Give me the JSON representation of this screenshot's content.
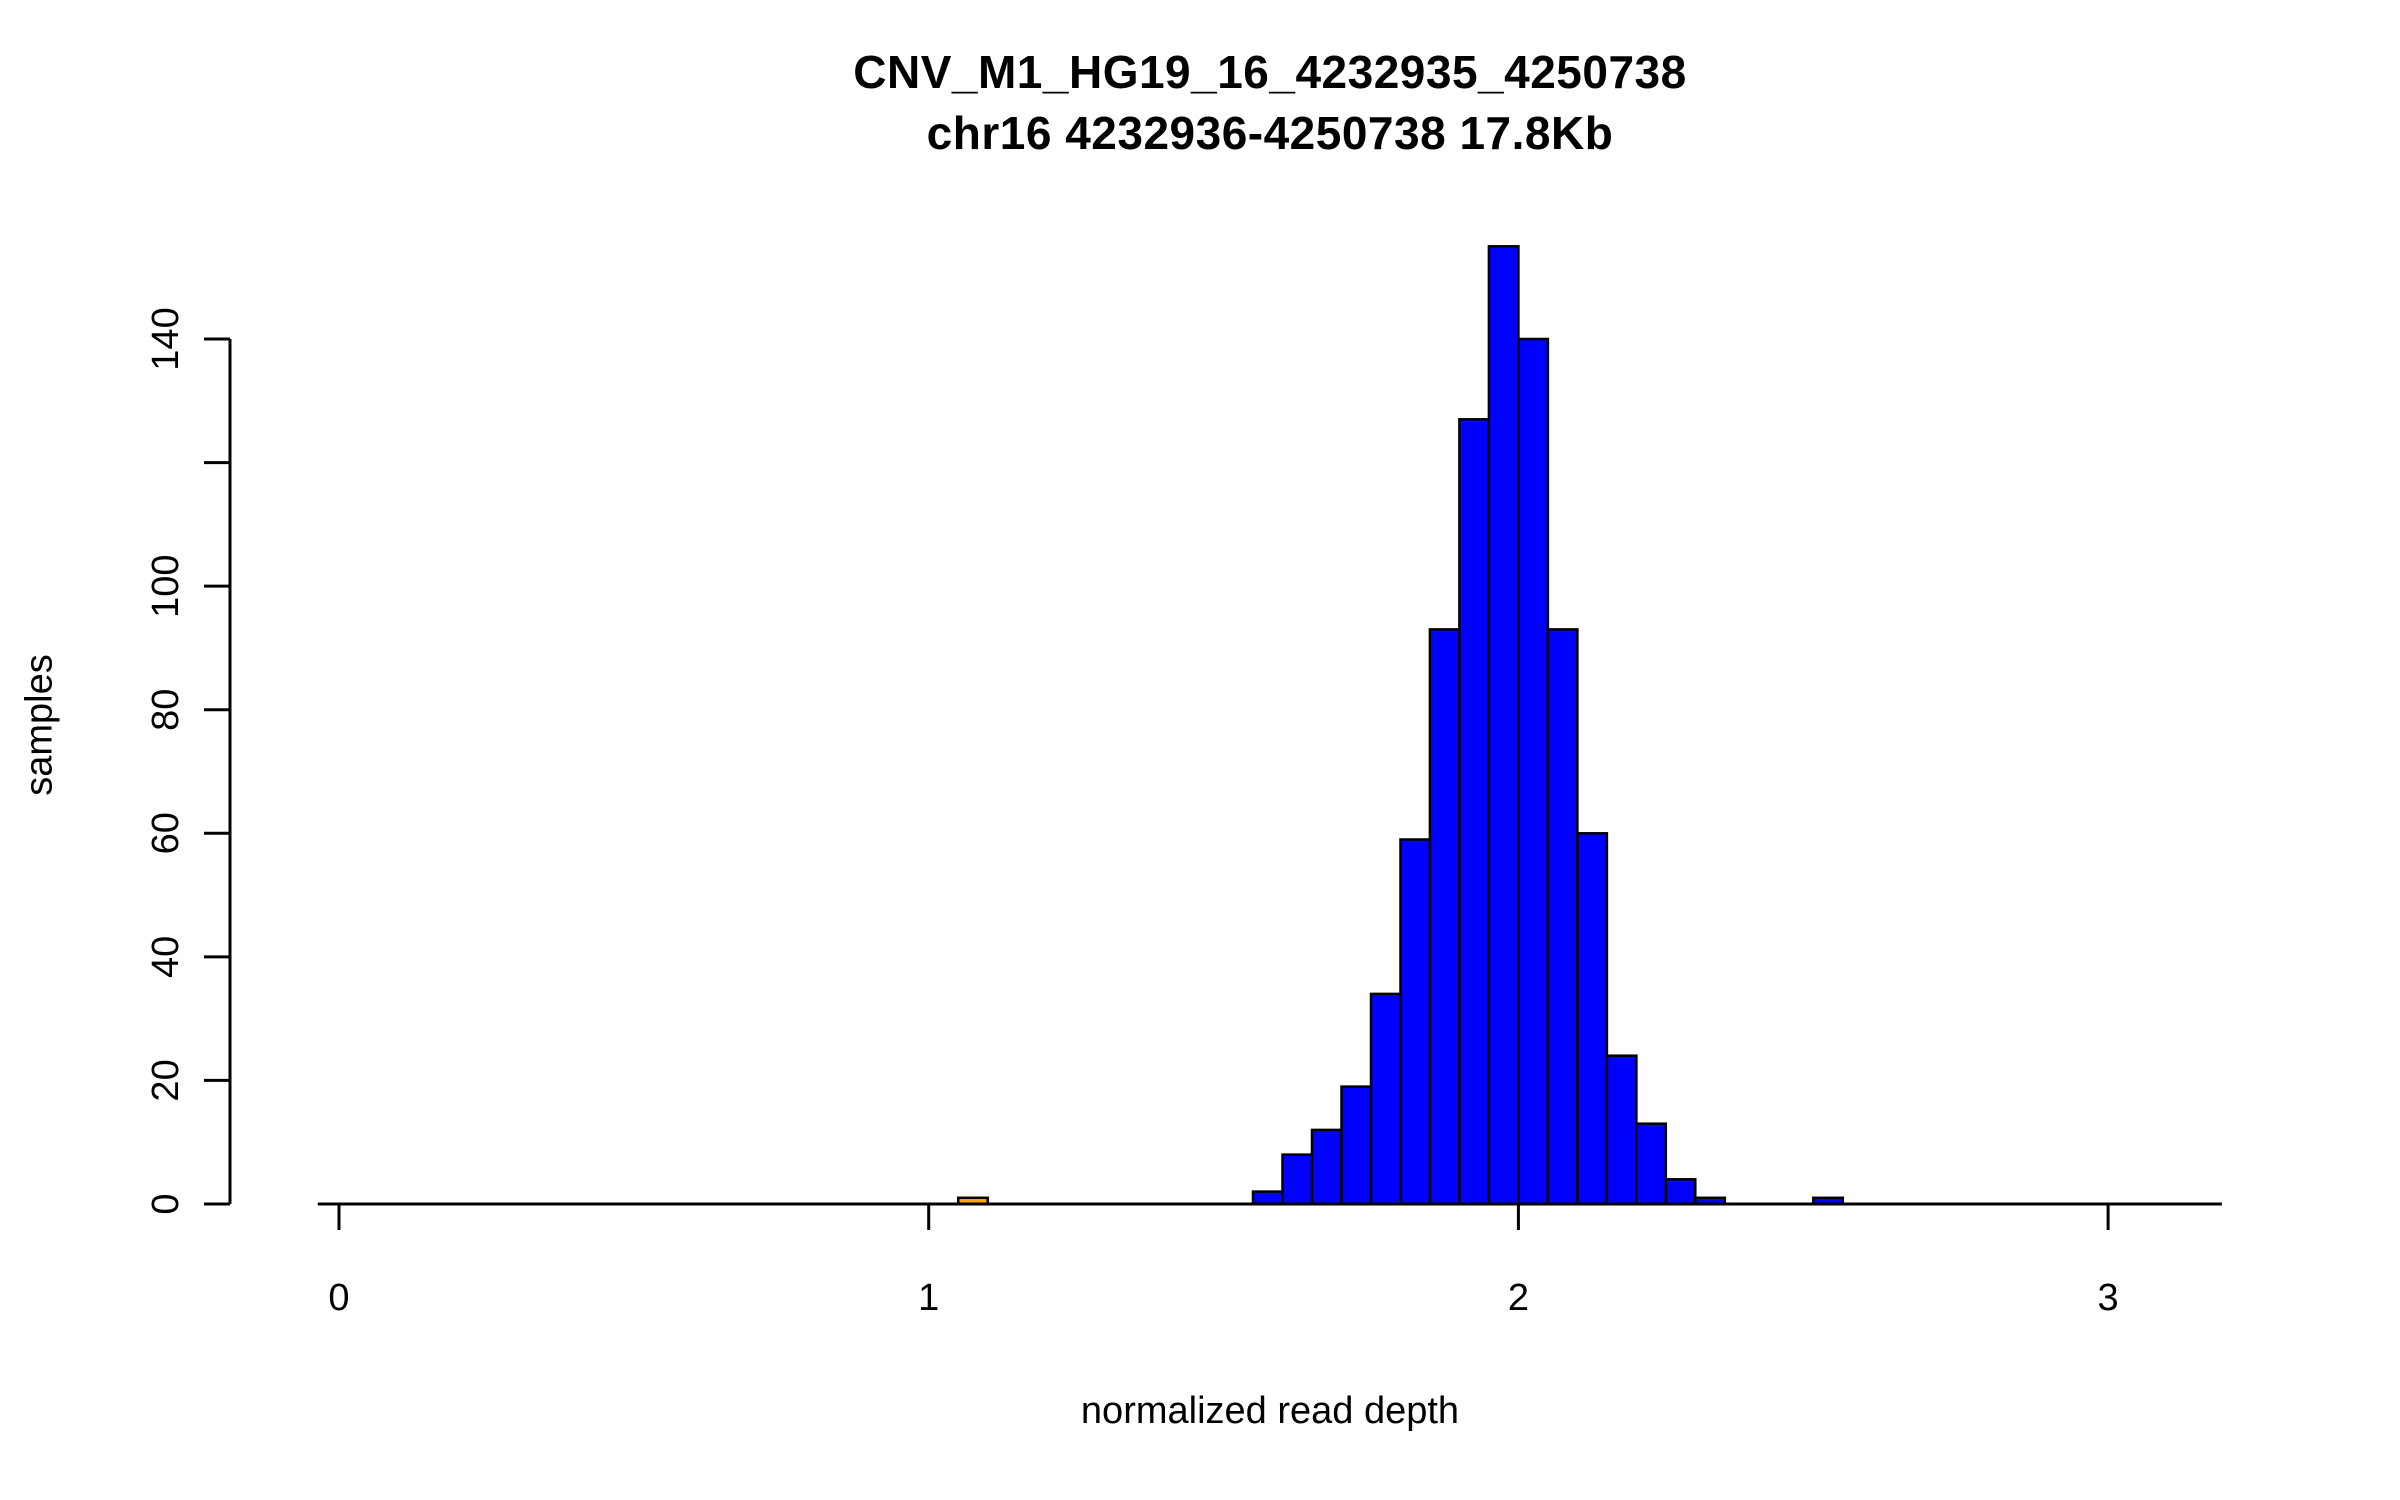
{
  "page": {
    "background": "#ffffff"
  },
  "chart_data": {
    "type": "bar",
    "subtype": "histogram",
    "title": "CNV_M1_HG19_16_4232935_4250738",
    "subtitle": "chr16 4232936-4250738 17.8Kb",
    "xlabel": "normalized read depth",
    "ylabel": "samples",
    "grid": false,
    "legend": false,
    "xlim": [
      -0.04,
      3.2
    ],
    "ylim": [
      0,
      155
    ],
    "x_axis_line_extent": [
      -0.036,
      3.193
    ],
    "y_axis_line_extent": [
      0,
      140
    ],
    "x_ticks": [
      {
        "v": 0,
        "label": "0"
      },
      {
        "v": 1,
        "label": "1"
      },
      {
        "v": 2,
        "label": "2"
      },
      {
        "v": 3,
        "label": "3"
      }
    ],
    "y_ticks": [
      {
        "v": 0,
        "label": "0"
      },
      {
        "v": 20,
        "label": "20"
      },
      {
        "v": 40,
        "label": "40"
      },
      {
        "v": 60,
        "label": "60"
      },
      {
        "v": 80,
        "label": "80"
      },
      {
        "v": 100,
        "label": "100"
      },
      {
        "v": 120,
        "label": ""
      },
      {
        "v": 140,
        "label": "140"
      }
    ],
    "bin_width": 0.05,
    "bar_fill": "#0000FF",
    "bar_stroke": "#000000",
    "bins": [
      {
        "x0": 1.05,
        "count": 1,
        "fill": "#FFA500"
      },
      {
        "x0": 1.55,
        "count": 2
      },
      {
        "x0": 1.6,
        "count": 8
      },
      {
        "x0": 1.65,
        "count": 12
      },
      {
        "x0": 1.7,
        "count": 19
      },
      {
        "x0": 1.75,
        "count": 34
      },
      {
        "x0": 1.8,
        "count": 59
      },
      {
        "x0": 1.85,
        "count": 93
      },
      {
        "x0": 1.9,
        "count": 127
      },
      {
        "x0": 1.95,
        "count": 155
      },
      {
        "x0": 2.0,
        "count": 140
      },
      {
        "x0": 2.05,
        "count": 93
      },
      {
        "x0": 2.1,
        "count": 60
      },
      {
        "x0": 2.15,
        "count": 24
      },
      {
        "x0": 2.2,
        "count": 13
      },
      {
        "x0": 2.25,
        "count": 4
      },
      {
        "x0": 2.3,
        "count": 1
      },
      {
        "x0": 2.5,
        "count": 1
      }
    ]
  }
}
